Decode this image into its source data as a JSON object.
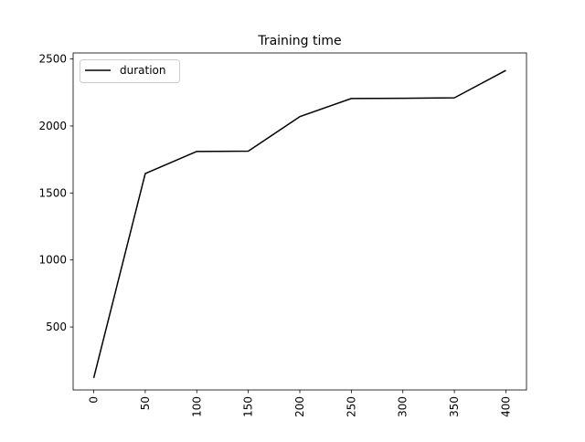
{
  "chart_data": {
    "type": "line",
    "title": "Training time",
    "xlabel": "",
    "ylabel": "",
    "x": [
      0,
      50,
      100,
      150,
      200,
      250,
      300,
      350,
      400
    ],
    "x_tick_labels": [
      "0",
      "50",
      "100",
      "150",
      "200",
      "250",
      "300",
      "350",
      "400"
    ],
    "xlim": [
      -20,
      420
    ],
    "y_ticks": [
      500,
      1000,
      1500,
      2000,
      2500
    ],
    "y_tick_labels": [
      "500",
      "1000",
      "1500",
      "2000",
      "2500"
    ],
    "ylim": [
      30,
      2545
    ],
    "series": [
      {
        "name": "duration",
        "color": "#000000",
        "values": [
          120,
          1645,
          1810,
          1812,
          2070,
          2205,
          2207,
          2210,
          2415
        ]
      }
    ],
    "grid": false,
    "legend": {
      "position": "top-left",
      "entries": [
        "duration"
      ]
    },
    "x_tick_rotation": "vertical"
  }
}
